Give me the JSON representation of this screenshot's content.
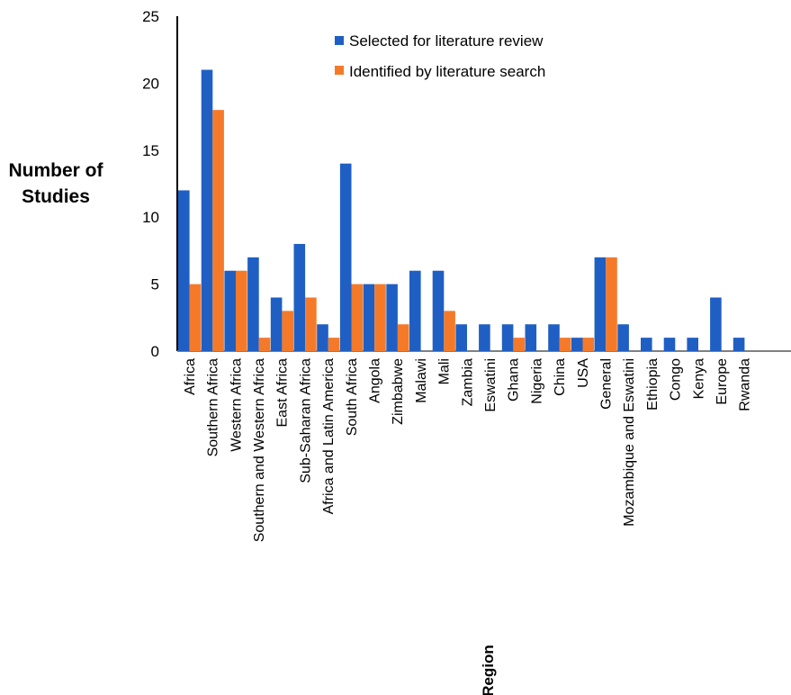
{
  "chart_data": {
    "type": "bar",
    "xlabel": "Region",
    "ylabel_line1": "Number of",
    "ylabel_line2": "Studies",
    "ylim": [
      0,
      25
    ],
    "yticks": [
      0,
      5,
      10,
      15,
      20,
      25
    ],
    "legend_position": "top-center",
    "grid": false,
    "categories": [
      "Africa",
      "Southern Africa",
      "Western Africa",
      "Southern and Western Africa",
      "East Africa",
      "Sub-Saharan Africa",
      "Africa and Latin America",
      "South Africa",
      "Angola",
      "Zimbabwe",
      "Malawi",
      "Mali",
      "Zambia",
      "Eswatini",
      "Ghana",
      "Nigeria",
      "China",
      "USA",
      "General",
      "Mozambique and Eswatini",
      "Ethiopia",
      "Congo",
      "Kenya",
      "Europe",
      "Rwanda"
    ],
    "series": [
      {
        "name": "Selected for literature review",
        "color": "#1f5fc4",
        "values": [
          12,
          21,
          6,
          7,
          4,
          8,
          2,
          14,
          5,
          5,
          6,
          6,
          2,
          2,
          2,
          2,
          2,
          1,
          7,
          2,
          1,
          1,
          1,
          4,
          1
        ]
      },
      {
        "name": "Identified by literature search",
        "color": "#f47a2a",
        "values": [
          5,
          18,
          6,
          1,
          3,
          4,
          1,
          5,
          5,
          2,
          0,
          3,
          0,
          0,
          1,
          0,
          1,
          1,
          7,
          0,
          0,
          0,
          0,
          0,
          0
        ]
      }
    ]
  }
}
